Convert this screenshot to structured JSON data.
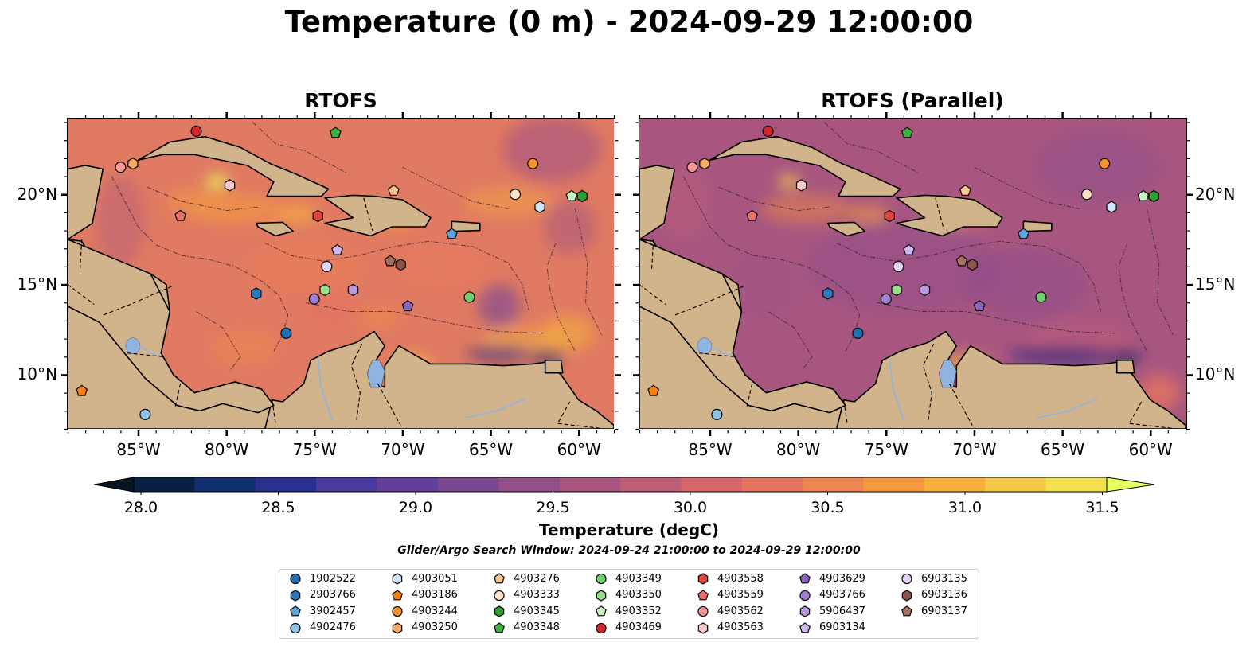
{
  "title": "Temperature (0 m) - 2024-09-29 12:00:00",
  "panels": [
    {
      "title": "RTOFS"
    },
    {
      "title": "RTOFS (Parallel)"
    }
  ],
  "map_extent": {
    "lon_min": -89,
    "lon_max": -58,
    "lat_min": 7,
    "lat_max": 24.2
  },
  "lon_ticks": [
    {
      "value": -85,
      "label": "85°W"
    },
    {
      "value": -80,
      "label": "80°W"
    },
    {
      "value": -75,
      "label": "75°W"
    },
    {
      "value": -70,
      "label": "70°W"
    },
    {
      "value": -65,
      "label": "65°W"
    },
    {
      "value": -60,
      "label": "60°W"
    }
  ],
  "lat_ticks": [
    {
      "value": 20,
      "label": "20°N"
    },
    {
      "value": 15,
      "label": "15°N"
    },
    {
      "value": 10,
      "label": "10°N"
    }
  ],
  "colorbar": {
    "title": "Temperature (degC)",
    "min": 28.0,
    "max": 31.5,
    "ticks": [
      "28.0",
      "28.5",
      "29.0",
      "29.5",
      "30.0",
      "30.5",
      "31.0",
      "31.5"
    ],
    "colors": [
      "#0a2040",
      "#10306e",
      "#2a3090",
      "#4a3a9e",
      "#623f98",
      "#7a4890",
      "#924f88",
      "#a85680",
      "#c05e78",
      "#d6686c",
      "#e47460",
      "#ef8550",
      "#f69a3e",
      "#f8b03c",
      "#f5c84a",
      "#f2e050"
    ],
    "under_color": "#061424",
    "over_color": "#e8ff60"
  },
  "colors": {
    "land": "#d2b48c",
    "ocean_base": "#e07a62",
    "pacific": "#0c1c36",
    "lake": "#8fb4e3"
  },
  "search_window": "Glider/Argo Search Window: 2024-09-24 21:00:00 to 2024-09-29 12:00:00",
  "platforms": [
    {
      "id": "1902522",
      "shape": "circle",
      "color": "#1f6fb4",
      "lon": -76.6,
      "lat": 12.3
    },
    {
      "id": "2903766",
      "shape": "hexagon",
      "color": "#2a7abf",
      "lon": -78.3,
      "lat": 14.5
    },
    {
      "id": "3902457",
      "shape": "pentagon",
      "color": "#5aa6dc",
      "lon": -67.2,
      "lat": 17.8
    },
    {
      "id": "4902476",
      "shape": "circle",
      "color": "#8cc2ea",
      "lon": -84.6,
      "lat": 7.8
    },
    {
      "id": "4903051",
      "shape": "hexagon",
      "color": "#cfe6fa",
      "lon": -62.2,
      "lat": 19.3
    },
    {
      "id": "4903186",
      "shape": "pentagon",
      "color": "#ff7f0e",
      "lon": -88.2,
      "lat": 9.1
    },
    {
      "id": "4903244",
      "shape": "circle",
      "color": "#f5922e",
      "lon": -62.6,
      "lat": 21.7
    },
    {
      "id": "4903250",
      "shape": "hexagon",
      "color": "#f9a860",
      "lon": -85.3,
      "lat": 21.7
    },
    {
      "id": "4903276",
      "shape": "pentagon",
      "color": "#fbc690",
      "lon": -70.5,
      "lat": 20.2
    },
    {
      "id": "4903333",
      "shape": "circle",
      "color": "#fde0c4",
      "lon": -63.6,
      "lat": 20.0
    },
    {
      "id": "4903345",
      "shape": "hexagon",
      "color": "#2ca02c",
      "lon": -59.8,
      "lat": 19.9
    },
    {
      "id": "4903348",
      "shape": "pentagon",
      "color": "#3db53d",
      "lon": -73.8,
      "lat": 23.4
    },
    {
      "id": "4903349",
      "shape": "circle",
      "color": "#6fcf6f",
      "lon": -66.2,
      "lat": 14.3
    },
    {
      "id": "4903350",
      "shape": "hexagon",
      "color": "#98df8a",
      "lon": -74.4,
      "lat": 14.7
    },
    {
      "id": "4903352",
      "shape": "pentagon",
      "color": "#c8f4c0",
      "lon": -60.4,
      "lat": 19.9
    },
    {
      "id": "4903469",
      "shape": "circle",
      "color": "#d62728",
      "lon": -81.7,
      "lat": 23.5
    },
    {
      "id": "4903558",
      "shape": "hexagon",
      "color": "#e0423e",
      "lon": -74.8,
      "lat": 18.8
    },
    {
      "id": "4903559",
      "shape": "pentagon",
      "color": "#ec6f6c",
      "lon": -82.6,
      "lat": 18.8
    },
    {
      "id": "4903562",
      "shape": "circle",
      "color": "#f69896",
      "lon": -86.0,
      "lat": 21.5
    },
    {
      "id": "4903563",
      "shape": "hexagon",
      "color": "#fcc8c6",
      "lon": -79.8,
      "lat": 20.5
    },
    {
      "id": "4903629",
      "shape": "pentagon",
      "color": "#8e63c0",
      "lon": -69.7,
      "lat": 13.8
    },
    {
      "id": "4903766",
      "shape": "circle",
      "color": "#a17fd0",
      "lon": -75.0,
      "lat": 14.2
    },
    {
      "id": "5906437",
      "shape": "hexagon",
      "color": "#b89be0",
      "lon": -72.8,
      "lat": 14.7
    },
    {
      "id": "6903134",
      "shape": "pentagon",
      "color": "#cdb8f0",
      "lon": -73.7,
      "lat": 16.9
    },
    {
      "id": "6903135",
      "shape": "circle",
      "color": "#e4d4fa",
      "lon": -74.3,
      "lat": 16.0
    },
    {
      "id": "6903136",
      "shape": "hexagon",
      "color": "#8c564b",
      "lon": -70.1,
      "lat": 16.1
    },
    {
      "id": "6903137",
      "shape": "pentagon",
      "color": "#a6705f",
      "lon": -70.7,
      "lat": 16.3
    }
  ]
}
